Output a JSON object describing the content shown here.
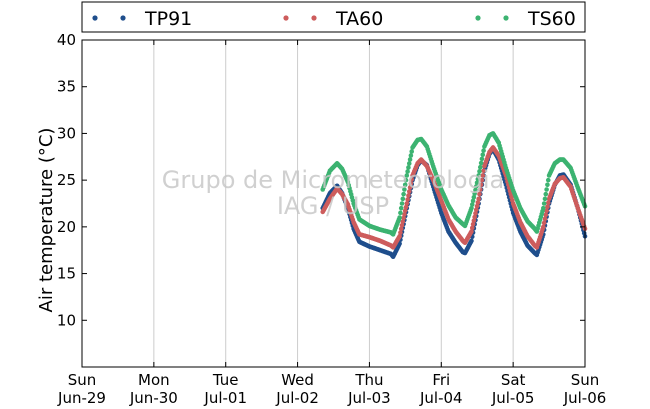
{
  "chart_data": {
    "type": "scatter",
    "ylabel": "Air temperature (°C)",
    "xlabel": "",
    "ylim": [
      5,
      40
    ],
    "yticks": [
      10,
      15,
      20,
      25,
      30,
      35,
      40
    ],
    "xlim": [
      0,
      7
    ],
    "xticks": [
      {
        "day": "Sun",
        "date": "Jun-29"
      },
      {
        "day": "Mon",
        "date": "Jun-30"
      },
      {
        "day": "Tue",
        "date": "Jul-01"
      },
      {
        "day": "Wed",
        "date": "Jul-02"
      },
      {
        "day": "Thu",
        "date": "Jul-03"
      },
      {
        "day": "Fri",
        "date": "Jul-04"
      },
      {
        "day": "Sat",
        "date": "Jul-05"
      },
      {
        "day": "Sun",
        "date": "Jul-06"
      }
    ],
    "grid": "vertical",
    "legend_position": "top",
    "watermark": [
      "Grupo de Micrometeorologia",
      "IAG / USP"
    ],
    "series": [
      {
        "name": "TP91",
        "color": "#1f4e8c",
        "points": [
          [
            3.35,
            22.0
          ],
          [
            3.45,
            23.6
          ],
          [
            3.55,
            24.4
          ],
          [
            3.62,
            23.6
          ],
          [
            3.7,
            22.0
          ],
          [
            3.78,
            19.8
          ],
          [
            3.86,
            18.4
          ],
          [
            4.0,
            17.9
          ],
          [
            4.15,
            17.5
          ],
          [
            4.3,
            17.1
          ],
          [
            4.33,
            16.8
          ],
          [
            4.42,
            18.2
          ],
          [
            4.52,
            22.0
          ],
          [
            4.6,
            25.0
          ],
          [
            4.67,
            26.6
          ],
          [
            4.72,
            27.1
          ],
          [
            4.8,
            26.6
          ],
          [
            4.9,
            24.0
          ],
          [
            5.0,
            21.5
          ],
          [
            5.1,
            19.5
          ],
          [
            5.2,
            18.3
          ],
          [
            5.3,
            17.3
          ],
          [
            5.33,
            17.2
          ],
          [
            5.42,
            18.5
          ],
          [
            5.52,
            22.5
          ],
          [
            5.6,
            26.0
          ],
          [
            5.67,
            27.8
          ],
          [
            5.72,
            28.3
          ],
          [
            5.8,
            27.2
          ],
          [
            5.9,
            24.5
          ],
          [
            6.0,
            21.5
          ],
          [
            6.1,
            19.5
          ],
          [
            6.2,
            18.0
          ],
          [
            6.3,
            17.2
          ],
          [
            6.33,
            17.0
          ],
          [
            6.42,
            19.2
          ],
          [
            6.5,
            22.5
          ],
          [
            6.58,
            24.5
          ],
          [
            6.65,
            25.5
          ],
          [
            6.7,
            25.6
          ],
          [
            6.8,
            24.5
          ],
          [
            6.9,
            22.0
          ],
          [
            7.0,
            19.0
          ]
        ]
      },
      {
        "name": "TA60",
        "color": "#cd5c5c",
        "points": [
          [
            3.35,
            21.6
          ],
          [
            3.45,
            23.0
          ],
          [
            3.55,
            24.1
          ],
          [
            3.62,
            23.5
          ],
          [
            3.7,
            22.4
          ],
          [
            3.78,
            20.5
          ],
          [
            3.86,
            19.2
          ],
          [
            4.0,
            18.9
          ],
          [
            4.15,
            18.5
          ],
          [
            4.3,
            18.0
          ],
          [
            4.33,
            17.8
          ],
          [
            4.42,
            19.0
          ],
          [
            4.52,
            22.5
          ],
          [
            4.6,
            25.5
          ],
          [
            4.67,
            26.8
          ],
          [
            4.72,
            27.2
          ],
          [
            4.8,
            26.5
          ],
          [
            4.9,
            24.8
          ],
          [
            5.0,
            22.8
          ],
          [
            5.1,
            20.8
          ],
          [
            5.2,
            19.5
          ],
          [
            5.3,
            18.5
          ],
          [
            5.33,
            18.3
          ],
          [
            5.42,
            19.5
          ],
          [
            5.52,
            23.0
          ],
          [
            5.6,
            26.5
          ],
          [
            5.67,
            28.0
          ],
          [
            5.72,
            28.5
          ],
          [
            5.8,
            27.6
          ],
          [
            5.9,
            25.5
          ],
          [
            6.0,
            22.5
          ],
          [
            6.1,
            20.5
          ],
          [
            6.2,
            19.0
          ],
          [
            6.3,
            18.0
          ],
          [
            6.33,
            17.8
          ],
          [
            6.42,
            20.0
          ],
          [
            6.5,
            23.0
          ],
          [
            6.58,
            24.6
          ],
          [
            6.65,
            25.2
          ],
          [
            6.7,
            25.3
          ],
          [
            6.8,
            24.3
          ],
          [
            6.9,
            22.0
          ],
          [
            7.0,
            19.8
          ]
        ]
      },
      {
        "name": "TS60",
        "color": "#3cb371",
        "points": [
          [
            3.35,
            24.0
          ],
          [
            3.45,
            26.0
          ],
          [
            3.55,
            26.8
          ],
          [
            3.62,
            26.2
          ],
          [
            3.7,
            24.8
          ],
          [
            3.78,
            22.5
          ],
          [
            3.86,
            20.8
          ],
          [
            4.0,
            20.1
          ],
          [
            4.15,
            19.7
          ],
          [
            4.3,
            19.4
          ],
          [
            4.33,
            19.2
          ],
          [
            4.42,
            21.0
          ],
          [
            4.52,
            25.5
          ],
          [
            4.6,
            28.5
          ],
          [
            4.67,
            29.3
          ],
          [
            4.72,
            29.4
          ],
          [
            4.8,
            28.6
          ],
          [
            4.9,
            26.2
          ],
          [
            5.0,
            24.0
          ],
          [
            5.1,
            22.3
          ],
          [
            5.2,
            21.0
          ],
          [
            5.3,
            20.3
          ],
          [
            5.33,
            20.1
          ],
          [
            5.42,
            22.0
          ],
          [
            5.52,
            25.5
          ],
          [
            5.6,
            28.6
          ],
          [
            5.67,
            29.8
          ],
          [
            5.72,
            30.0
          ],
          [
            5.8,
            29.0
          ],
          [
            5.9,
            26.3
          ],
          [
            6.0,
            23.9
          ],
          [
            6.1,
            22.0
          ],
          [
            6.2,
            20.6
          ],
          [
            6.3,
            19.8
          ],
          [
            6.33,
            19.5
          ],
          [
            6.42,
            22.0
          ],
          [
            6.5,
            25.5
          ],
          [
            6.58,
            26.8
          ],
          [
            6.65,
            27.2
          ],
          [
            6.7,
            27.2
          ],
          [
            6.8,
            26.3
          ],
          [
            6.9,
            24.2
          ],
          [
            7.0,
            22.2
          ]
        ]
      }
    ]
  }
}
